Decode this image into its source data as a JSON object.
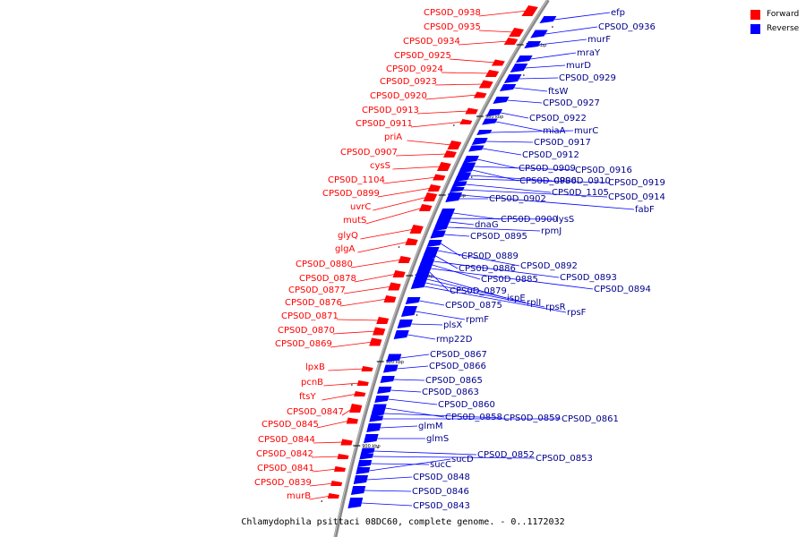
{
  "legend": {
    "forward": {
      "label": "Forward",
      "color": "#ff0000"
    },
    "reverse": {
      "label": "Reverse",
      "color": "#0000ff"
    }
  },
  "caption": "Chlamydophila psittaci 08DC60, complete genome. - 0..1172032",
  "scale_labels": [
    "1000 kbp",
    "980 kbp",
    "960 kbp",
    "940 kbp",
    "920 kbp",
    "900 kbp"
  ],
  "forward_labels": [
    "CPS0D_0938",
    "CPS0D_0935",
    "CPS0D_0934",
    "CPS0D_0925",
    "CPS0D_0924",
    "CPS0D_0923",
    "CPS0D_0920",
    "CPS0D_0913",
    "CPS0D_0911",
    "priA",
    "CPS0D_0907",
    "cysS",
    "CPS0D_1104",
    "CPS0D_0899",
    "uvrC",
    "mutS",
    "glyQ",
    "glgA",
    "CPS0D_0880",
    "CPS0D_0878",
    "CPS0D_0877",
    "CPS0D_0876",
    "CPS0D_0871",
    "CPS0D_0870",
    "CPS0D_0869",
    "lpxB",
    "pcnB",
    "ftsY",
    "CPS0D_0847",
    "CPS0D_0845",
    "CPS0D_0844",
    "CPS0D_0842",
    "CPS0D_0841",
    "CPS0D_0839",
    "murB"
  ],
  "reverse_labels": [
    "efp",
    "CPS0D_0936",
    "murF",
    "mraY",
    "murD",
    "CPS0D_0929",
    "ftsW",
    "CPS0D_0927",
    "CPS0D_0922",
    "miaA",
    "murC",
    "CPS0D_0917",
    "CPS0D_0912",
    "CPS0D_0909",
    "CPS0D_0916",
    "CPS0D_0906",
    "CPS0D_0910",
    "CPS0D_0919",
    "CPS0D_1105",
    "CPS0D_0914",
    "fabF",
    "CPS0D_0902",
    "CPS0D_0900",
    "lysS",
    "dnaG",
    "rpmJ",
    "CPS0D_0895",
    "CPS0D_0889",
    "CPS0D_0892",
    "CPS0D_0886",
    "CPS0D_0893",
    "CPS0D_0885",
    "CPS0D_0894",
    "CPS0D_0879",
    "ispE",
    "rplI",
    "rpsR",
    "rpsF",
    "CPS0D_0875",
    "rpmF",
    "plsX",
    "rmp22D",
    "CPS0D_0867",
    "CPS0D_0866",
    "CPS0D_0865",
    "CPS0D_0863",
    "CPS0D_0860",
    "CPS0D_0858",
    "CPS0D_0859",
    "CPS0D_0861",
    "glmM",
    "glmS",
    "CPS0D_0852",
    "CPS0D_0853",
    "sucC",
    "sucD",
    "CPS0D_0848",
    "CPS0D_0846",
    "CPS0D_0843"
  ]
}
